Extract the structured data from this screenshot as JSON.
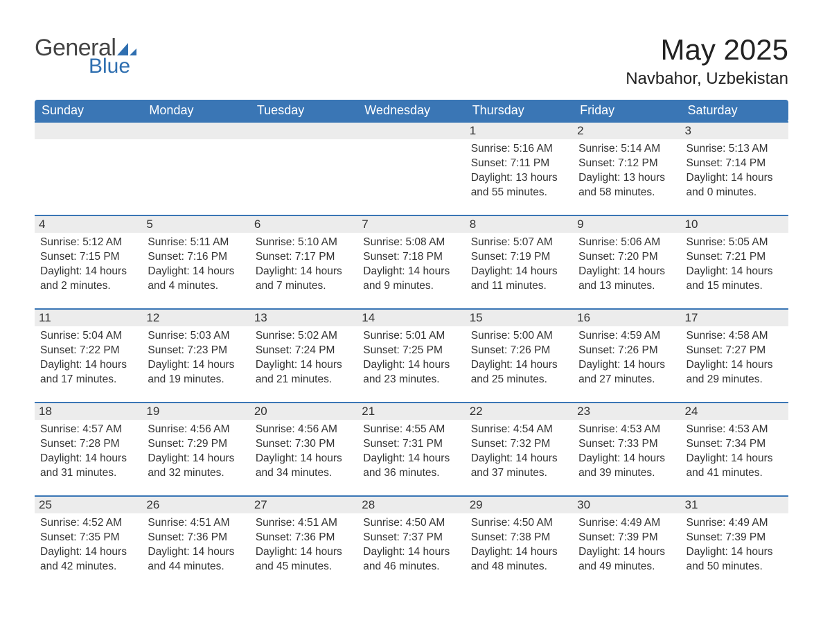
{
  "logo": {
    "text_general": "General",
    "text_blue": "Blue",
    "accent_color": "#2f6fb0"
  },
  "title": "May 2025",
  "location": "Navbahor, Uzbekistan",
  "colors": {
    "header_bg": "#3a76b5",
    "header_text": "#ffffff",
    "row_divider": "#3a76b5",
    "daynum_bg": "#ececec",
    "body_text": "#333333",
    "page_bg": "#ffffff"
  },
  "typography": {
    "title_fontsize_pt": 32,
    "location_fontsize_pt": 18,
    "header_fontsize_pt": 14,
    "body_fontsize_pt": 12
  },
  "day_headers": [
    "Sunday",
    "Monday",
    "Tuesday",
    "Wednesday",
    "Thursday",
    "Friday",
    "Saturday"
  ],
  "labels": {
    "sunrise": "Sunrise:",
    "sunset": "Sunset:",
    "daylight": "Daylight:"
  },
  "weeks": [
    [
      null,
      null,
      null,
      null,
      {
        "day": "1",
        "sunrise": "5:16 AM",
        "sunset": "7:11 PM",
        "daylight": "13 hours and 55 minutes."
      },
      {
        "day": "2",
        "sunrise": "5:14 AM",
        "sunset": "7:12 PM",
        "daylight": "13 hours and 58 minutes."
      },
      {
        "day": "3",
        "sunrise": "5:13 AM",
        "sunset": "7:14 PM",
        "daylight": "14 hours and 0 minutes."
      }
    ],
    [
      {
        "day": "4",
        "sunrise": "5:12 AM",
        "sunset": "7:15 PM",
        "daylight": "14 hours and 2 minutes."
      },
      {
        "day": "5",
        "sunrise": "5:11 AM",
        "sunset": "7:16 PM",
        "daylight": "14 hours and 4 minutes."
      },
      {
        "day": "6",
        "sunrise": "5:10 AM",
        "sunset": "7:17 PM",
        "daylight": "14 hours and 7 minutes."
      },
      {
        "day": "7",
        "sunrise": "5:08 AM",
        "sunset": "7:18 PM",
        "daylight": "14 hours and 9 minutes."
      },
      {
        "day": "8",
        "sunrise": "5:07 AM",
        "sunset": "7:19 PM",
        "daylight": "14 hours and 11 minutes."
      },
      {
        "day": "9",
        "sunrise": "5:06 AM",
        "sunset": "7:20 PM",
        "daylight": "14 hours and 13 minutes."
      },
      {
        "day": "10",
        "sunrise": "5:05 AM",
        "sunset": "7:21 PM",
        "daylight": "14 hours and 15 minutes."
      }
    ],
    [
      {
        "day": "11",
        "sunrise": "5:04 AM",
        "sunset": "7:22 PM",
        "daylight": "14 hours and 17 minutes."
      },
      {
        "day": "12",
        "sunrise": "5:03 AM",
        "sunset": "7:23 PM",
        "daylight": "14 hours and 19 minutes."
      },
      {
        "day": "13",
        "sunrise": "5:02 AM",
        "sunset": "7:24 PM",
        "daylight": "14 hours and 21 minutes."
      },
      {
        "day": "14",
        "sunrise": "5:01 AM",
        "sunset": "7:25 PM",
        "daylight": "14 hours and 23 minutes."
      },
      {
        "day": "15",
        "sunrise": "5:00 AM",
        "sunset": "7:26 PM",
        "daylight": "14 hours and 25 minutes."
      },
      {
        "day": "16",
        "sunrise": "4:59 AM",
        "sunset": "7:26 PM",
        "daylight": "14 hours and 27 minutes."
      },
      {
        "day": "17",
        "sunrise": "4:58 AM",
        "sunset": "7:27 PM",
        "daylight": "14 hours and 29 minutes."
      }
    ],
    [
      {
        "day": "18",
        "sunrise": "4:57 AM",
        "sunset": "7:28 PM",
        "daylight": "14 hours and 31 minutes."
      },
      {
        "day": "19",
        "sunrise": "4:56 AM",
        "sunset": "7:29 PM",
        "daylight": "14 hours and 32 minutes."
      },
      {
        "day": "20",
        "sunrise": "4:56 AM",
        "sunset": "7:30 PM",
        "daylight": "14 hours and 34 minutes."
      },
      {
        "day": "21",
        "sunrise": "4:55 AM",
        "sunset": "7:31 PM",
        "daylight": "14 hours and 36 minutes."
      },
      {
        "day": "22",
        "sunrise": "4:54 AM",
        "sunset": "7:32 PM",
        "daylight": "14 hours and 37 minutes."
      },
      {
        "day": "23",
        "sunrise": "4:53 AM",
        "sunset": "7:33 PM",
        "daylight": "14 hours and 39 minutes."
      },
      {
        "day": "24",
        "sunrise": "4:53 AM",
        "sunset": "7:34 PM",
        "daylight": "14 hours and 41 minutes."
      }
    ],
    [
      {
        "day": "25",
        "sunrise": "4:52 AM",
        "sunset": "7:35 PM",
        "daylight": "14 hours and 42 minutes."
      },
      {
        "day": "26",
        "sunrise": "4:51 AM",
        "sunset": "7:36 PM",
        "daylight": "14 hours and 44 minutes."
      },
      {
        "day": "27",
        "sunrise": "4:51 AM",
        "sunset": "7:36 PM",
        "daylight": "14 hours and 45 minutes."
      },
      {
        "day": "28",
        "sunrise": "4:50 AM",
        "sunset": "7:37 PM",
        "daylight": "14 hours and 46 minutes."
      },
      {
        "day": "29",
        "sunrise": "4:50 AM",
        "sunset": "7:38 PM",
        "daylight": "14 hours and 48 minutes."
      },
      {
        "day": "30",
        "sunrise": "4:49 AM",
        "sunset": "7:39 PM",
        "daylight": "14 hours and 49 minutes."
      },
      {
        "day": "31",
        "sunrise": "4:49 AM",
        "sunset": "7:39 PM",
        "daylight": "14 hours and 50 minutes."
      }
    ]
  ]
}
